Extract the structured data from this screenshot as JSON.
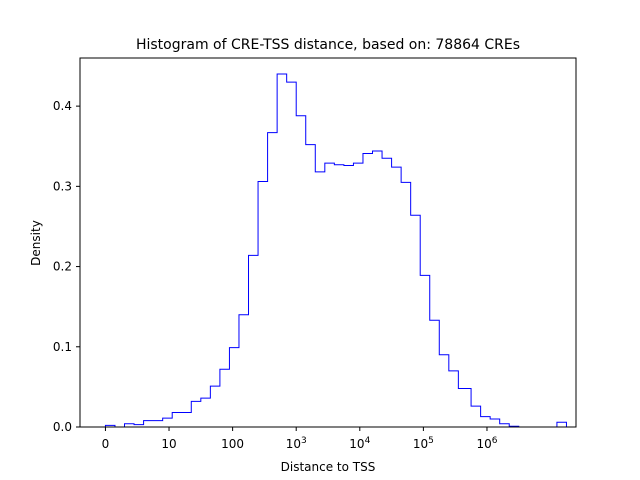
{
  "chart_data": {
    "type": "histogram",
    "title": "Histogram of CRE-TSS distance, based on: 78864 CREs",
    "xlabel": "Distance to TSS",
    "ylabel": "Density",
    "x_scale": "log1p",
    "xlim": [
      -0.4,
      7.4
    ],
    "ylim": [
      0,
      0.46
    ],
    "grid": false,
    "legend": "none",
    "color": "#0000ff",
    "x_ticks": [
      {
        "value": 0,
        "base": "0",
        "exp": ""
      },
      {
        "value": 1,
        "base": "10",
        "exp": ""
      },
      {
        "value": 2,
        "base": "100",
        "exp": ""
      },
      {
        "value": 3,
        "base": "10",
        "exp": "3"
      },
      {
        "value": 4,
        "base": "10",
        "exp": "4"
      },
      {
        "value": 5,
        "base": "10",
        "exp": "5"
      },
      {
        "value": 6,
        "base": "10",
        "exp": "6"
      }
    ],
    "y_ticks": [
      {
        "value": 0.0,
        "label": "0.0"
      },
      {
        "value": 0.1,
        "label": "0.1"
      },
      {
        "value": 0.2,
        "label": "0.2"
      },
      {
        "value": 0.3,
        "label": "0.3"
      },
      {
        "value": 0.4,
        "label": "0.4"
      }
    ],
    "bin_edges": [
      0.0,
      0.15,
      0.3,
      0.45,
      0.6,
      0.75,
      0.9,
      1.05,
      1.2,
      1.35,
      1.5,
      1.65,
      1.8,
      1.95,
      2.1,
      2.25,
      2.4,
      2.55,
      2.7,
      2.85,
      3.0,
      3.15,
      3.3,
      3.45,
      3.6,
      3.75,
      3.9,
      4.05,
      4.2,
      4.35,
      4.5,
      4.65,
      4.8,
      4.95,
      5.1,
      5.25,
      5.4,
      5.55,
      5.6,
      5.75,
      5.9,
      6.05,
      6.2,
      6.35,
      6.5,
      6.65,
      6.8,
      6.95,
      7.1,
      7.25
    ],
    "values": [
      0.002,
      0.0,
      0.004,
      0.003,
      0.008,
      0.008,
      0.011,
      0.018,
      0.018,
      0.032,
      0.036,
      0.051,
      0.072,
      0.099,
      0.14,
      0.214,
      0.306,
      0.367,
      0.44,
      0.43,
      0.388,
      0.352,
      0.318,
      0.329,
      0.327,
      0.326,
      0.329,
      0.341,
      0.344,
      0.335,
      0.324,
      0.305,
      0.264,
      0.189,
      0.133,
      0.09,
      0.07,
      0.048,
      0.048,
      0.026,
      0.013,
      0.01,
      0.004,
      0.001,
      0.0,
      0.0,
      0.0,
      0.0,
      0.006
    ]
  }
}
